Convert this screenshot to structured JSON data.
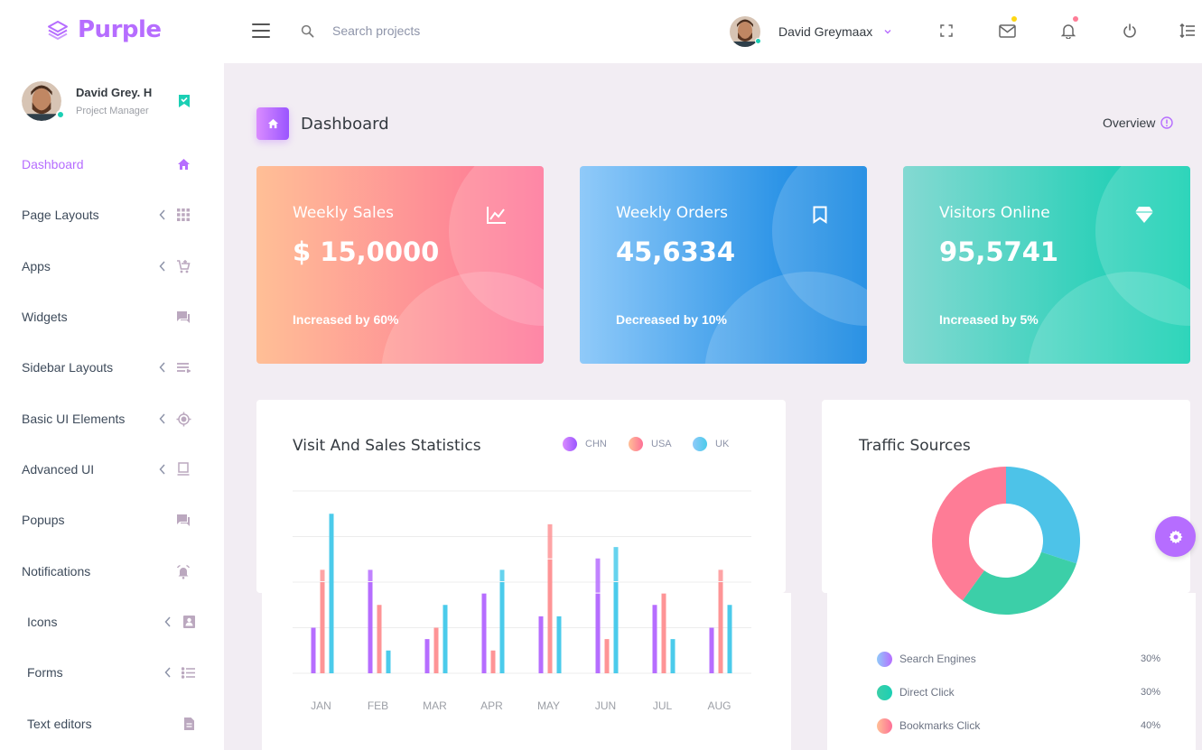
{
  "brand": {
    "name": "Purple",
    "color": "#b66dff",
    "icon": "layers-icon"
  },
  "topbar": {
    "search_placeholder": "Search projects",
    "user_name": "David Greymaax",
    "icons": [
      "menu-icon",
      "search-icon",
      "fullscreen-icon",
      "mail-icon",
      "bell-icon",
      "power-icon",
      "list-icon"
    ],
    "mail_dot_color": "#fed713",
    "bell_dot_color": "#fe7c96"
  },
  "sidebar": {
    "profile": {
      "name": "David Grey. H",
      "role": "Project Manager",
      "badge": "bookmark-check-icon"
    },
    "items": [
      {
        "label": "Dashboard",
        "icon": "home-icon",
        "chevron": false,
        "active": true
      },
      {
        "label": "Page Layouts",
        "icon": "grid-icon",
        "chevron": true
      },
      {
        "label": "Apps",
        "icon": "cart-icon",
        "chevron": true
      },
      {
        "label": "Widgets",
        "icon": "chat-icon",
        "chevron": false
      },
      {
        "label": "Sidebar Layouts",
        "icon": "menu-lines-icon",
        "chevron": true
      },
      {
        "label": "Basic UI Elements",
        "icon": "crosshair-icon",
        "chevron": true
      },
      {
        "label": "Advanced UI",
        "icon": "monitor-icon",
        "chevron": true
      },
      {
        "label": "Popups",
        "icon": "chat-icon",
        "chevron": false
      },
      {
        "label": "Notifications",
        "icon": "bell-ring-icon",
        "chevron": false
      },
      {
        "label": "Icons",
        "icon": "contacts-icon",
        "chevron": true
      },
      {
        "label": "Forms",
        "icon": "list-icon",
        "chevron": true
      },
      {
        "label": "Text editors",
        "icon": "file-icon",
        "chevron": false
      }
    ]
  },
  "page": {
    "title": "Dashboard",
    "overview": "Overview"
  },
  "cards": [
    {
      "title": "Weekly Sales",
      "value": "$ 15,0000",
      "sub": "Increased by 60%",
      "icon": "chart-line-icon"
    },
    {
      "title": "Weekly Orders",
      "value": "45,6334",
      "sub": "Decreased by 10%",
      "icon": "bookmark-icon"
    },
    {
      "title": "Visitors Online",
      "value": "95,5741",
      "sub": "Increased by 5%",
      "icon": "diamond-icon"
    }
  ],
  "visit_chart": {
    "title": "Visit And Sales Statistics",
    "legend": [
      {
        "name": "CHN",
        "color": "#b66dff"
      },
      {
        "name": "USA",
        "color": "#fe9496"
      },
      {
        "name": "UK",
        "color": "#4bcbeb"
      }
    ]
  },
  "traffic": {
    "title": "Traffic Sources",
    "items": [
      {
        "label": "Search Engines",
        "value": "30%",
        "color": "#4dc3e8"
      },
      {
        "label": "Direct Click",
        "value": "30%",
        "color": "#3ccfa8"
      },
      {
        "label": "Bookmarks Click",
        "value": "40%",
        "color": "#fe7c96"
      }
    ]
  },
  "chart_data": [
    {
      "type": "bar",
      "title": "Visit And Sales Statistics",
      "categories": [
        "JAN",
        "FEB",
        "MAR",
        "APR",
        "MAY",
        "JUN",
        "JUL",
        "AUG"
      ],
      "series": [
        {
          "name": "CHN",
          "values": [
            20,
            40,
            15,
            35,
            25,
            35,
            30,
            20
          ],
          "color": "#b66dff"
        },
        {
          "name": "USA",
          "values": [
            40,
            30,
            20,
            10,
            50,
            15,
            35,
            40
          ],
          "color": "#fe9496"
        },
        {
          "name": "UK",
          "values": [
            70,
            10,
            30,
            40,
            25,
            40,
            15,
            30
          ],
          "color": "#4bcbeb"
        }
      ],
      "series_2": {
        "CHN": [
          0,
          5,
          0,
          0,
          0,
          15,
          0,
          0
        ],
        "USA": [
          5,
          0,
          0,
          0,
          15,
          0,
          0,
          5
        ],
        "UK": [
          0,
          0,
          0,
          5,
          0,
          15,
          0,
          0
        ]
      },
      "ylim": [
        0,
        80
      ],
      "grid": true
    },
    {
      "type": "pie",
      "title": "Traffic Sources",
      "categories": [
        "Search Engines",
        "Direct Click",
        "Bookmarks Click"
      ],
      "values": [
        30,
        30,
        40
      ]
    }
  ]
}
